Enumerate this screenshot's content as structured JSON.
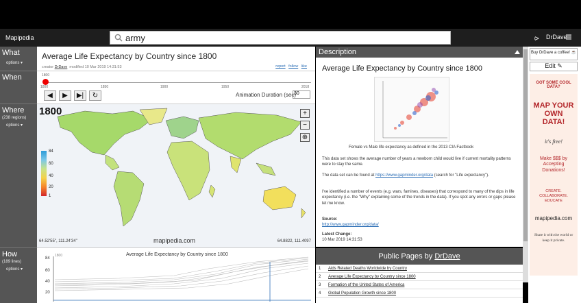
{
  "header": {
    "logo": "Mapipedia",
    "search_value": "army",
    "user": "DrDave"
  },
  "sections": {
    "what": {
      "title": "What",
      "options": "options ▾"
    },
    "when": {
      "title": "When"
    },
    "where": {
      "title": "Where",
      "sub": "(238 regions)",
      "options": "options ▾"
    },
    "how": {
      "title": "How",
      "sub": "(189 lines)",
      "options": "options ▾"
    }
  },
  "what": {
    "title": "Average Life Expectancy by Country since 1800",
    "creator_label": "creator",
    "creator": "DrDave",
    "modified": "modified 10 Mar 2019 14:31:53",
    "links": [
      "report",
      "follow",
      "like"
    ]
  },
  "when": {
    "year_top": "1800",
    "ticks": [
      "1800",
      "1850",
      "1900",
      "1950",
      "2018"
    ],
    "animation_label": "Animation Duration (sec)",
    "animation_value": "30"
  },
  "where": {
    "year": "1800",
    "coord_left": "64.52'55\", 111.24'34\"",
    "coord_right": "64.8822, 111.4097",
    "brand": "mapipedia.com",
    "legend": [
      "84",
      "60",
      "40",
      "20",
      "1"
    ]
  },
  "how": {
    "title": "Average Life Expectancy by Country since 1800",
    "yticks": [
      "84",
      "60",
      "40",
      "20"
    ],
    "year_mark": "1800"
  },
  "description": {
    "header": "Description",
    "title": "Average Life Expectancy by Country since 1800",
    "caption": "Female vs Male life expectancy as defined in the 2013 CIA Factbook",
    "p1": "This data set shows the average number of years a newborn child would live if current mortality patterns were to stay the same.",
    "p2_pre": "The data set can be found at ",
    "p2_link": "https://www.gapminder.org/data",
    "p2_post": " (search for \"Life expectancy\").",
    "p3": "I've identified a number of events (e.g. wars, famines, diseases) that correspond to many of the dips in life expectancy (i.e. the \"Why\" explaining some of the trends in the data). If you spot any errors or gaps please let me know.",
    "source_label": "Source:",
    "source_link": "http://www.gapminder.org/data/",
    "change_label": "Latest Change:",
    "change_value": "10 Mar 2019 14:31:53"
  },
  "public_pages": {
    "header_pre": "Public Pages by ",
    "header_user": "DrDave",
    "items": [
      {
        "num": "1",
        "label": "Aids Related Deaths Worldwide by Country"
      },
      {
        "num": "2",
        "label": "Average Life Expectancy by Country since 1800"
      },
      {
        "num": "3",
        "label": "Formation of the United States of America"
      },
      {
        "num": "4",
        "label": "Global Population Growth since 1800"
      }
    ]
  },
  "right": {
    "coffee": "Buy DrDave a coffee!",
    "edit": "Edit",
    "ad_1": "GOT SOME COOL DATA?",
    "ad_2": "MAP YOUR OWN DATA!",
    "ad_3": "it's free!",
    "ad_4": "Make $$$ by Accepting Donations!",
    "ad_5": "CREATE. COLLABORATE. EDUCATE",
    "ad_6": "mapipedia.com",
    "ad_7": "Share it with the world or keep it private."
  }
}
